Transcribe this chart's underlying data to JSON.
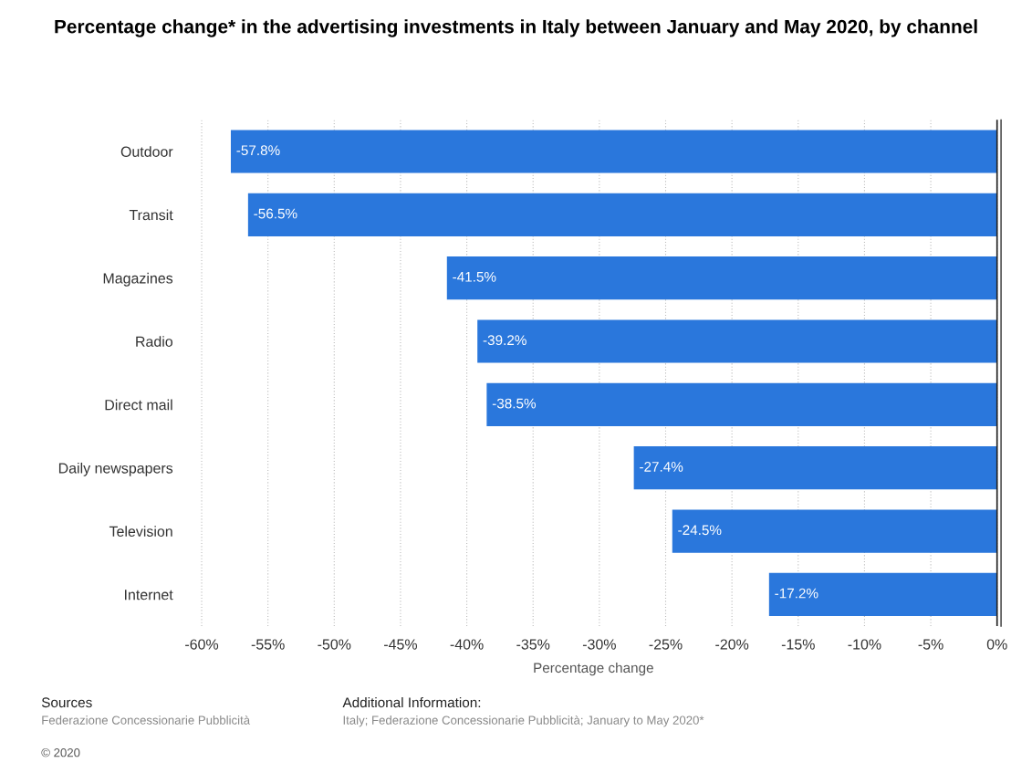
{
  "chart_data": {
    "type": "bar",
    "orientation": "horizontal",
    "title": "Percentage change* in the advertising investments in Italy between January and May 2020, by channel",
    "xlabel": "Percentage change",
    "categories": [
      "Outdoor",
      "Transit",
      "Magazines",
      "Radio",
      "Direct mail",
      "Daily newspapers",
      "Television",
      "Internet"
    ],
    "values": [
      -57.8,
      -56.5,
      -41.5,
      -39.2,
      -38.5,
      -27.4,
      -24.5,
      -17.2
    ],
    "value_labels": [
      "-57.8%",
      "-56.5%",
      "-41.5%",
      "-39.2%",
      "-38.5%",
      "-27.4%",
      "-24.5%",
      "-17.2%"
    ],
    "color": "#2a77dc",
    "xlim": [
      -60,
      0
    ],
    "xticks": [
      {
        "value": -60,
        "label": "-60%"
      },
      {
        "value": -55,
        "label": "-55%"
      },
      {
        "value": -50,
        "label": "-50%"
      },
      {
        "value": -45,
        "label": "-45%"
      },
      {
        "value": -40,
        "label": "-40%"
      },
      {
        "value": -35,
        "label": "-35%"
      },
      {
        "value": -30,
        "label": "-30%"
      },
      {
        "value": -25,
        "label": "-25%"
      },
      {
        "value": -20,
        "label": "-20%"
      },
      {
        "value": -15,
        "label": "-15%"
      },
      {
        "value": -10,
        "label": "-10%"
      },
      {
        "value": -5,
        "label": "-5%"
      },
      {
        "value": 0,
        "label": "0%"
      }
    ],
    "grid": "x",
    "annotations": [
      "Sources",
      "Federazione Concessionarie Pubblicità",
      "© 2020",
      "Additional Information:",
      "Italy; Federazione Concessionarie Pubblicità; January to May 2020*"
    ]
  }
}
